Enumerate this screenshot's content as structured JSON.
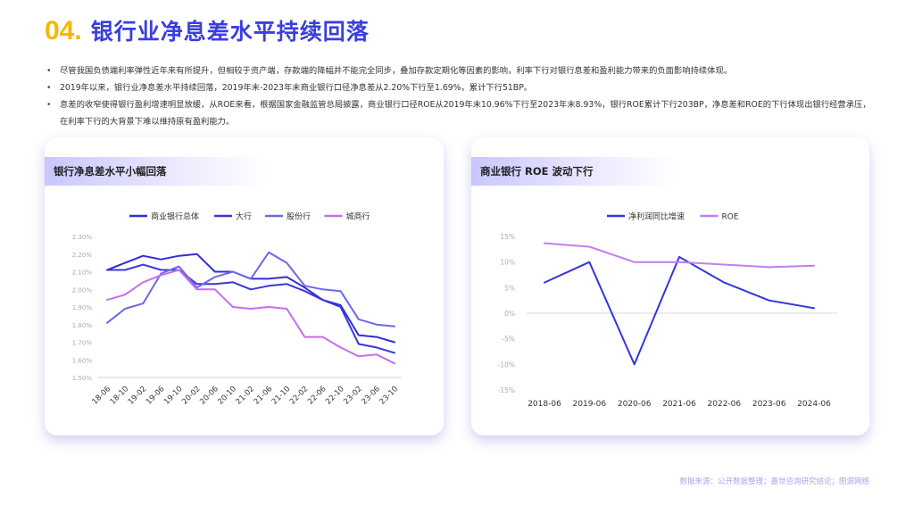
{
  "title": {
    "number": "04.",
    "text": "银行业净息差水平持续回落"
  },
  "bullets": [
    "尽管我国负债端利率弹性近年来有所提升，但相较于资产端，存款端的降幅并不能完全同步，叠加存款定期化等因素的影响，利率下行对银行息差和盈利能力带来的负面影响持续体现。",
    "2019年以来，银行业净息差水平持续回落，2019年末-2023年末商业银行口径净息差从2.20%下行至1.69%，累计下行51BP。",
    "息差的收窄使得银行盈利增速明显放缓，从ROE来看，根据国家金融监管总局披露，商业银行口径ROE从2019年末10.96%下行至2023年末8.93%，银行ROE累计下行203BP，净息差和ROE的下行体现出银行经营承压，在利率下行的大背景下难以维持原有盈利能力。"
  ],
  "footer": "数据来源：公开数据整理；嘉世咨询研究结论；图源网络",
  "chart_data": [
    {
      "type": "line",
      "title": "银行净息差水平小幅回落",
      "x": [
        "18-06",
        "18-10",
        "19-02",
        "19-06",
        "19-10",
        "20-02",
        "20-06",
        "20-10",
        "21-02",
        "21-06",
        "21-10",
        "22-02",
        "22-06",
        "22-10",
        "23-02",
        "23-06",
        "23-10"
      ],
      "ylim": [
        1.5,
        2.3
      ],
      "yticks": [
        "2.30%",
        "2.20%",
        "2.10%",
        "2.00%",
        "1.90%",
        "1.80%",
        "1.70%",
        "1.60%",
        "1.50%"
      ],
      "grid": false,
      "legend": "top",
      "series": [
        {
          "name": "商业银行总体",
          "color": "#2f2fd6",
          "values": [
            2.11,
            2.15,
            2.19,
            2.17,
            2.19,
            2.2,
            2.1,
            2.1,
            2.06,
            2.06,
            2.07,
            2.01,
            1.94,
            1.91,
            1.74,
            1.73,
            1.7
          ]
        },
        {
          "name": "大行",
          "color": "#3737e0",
          "values": [
            2.11,
            2.11,
            2.14,
            2.11,
            2.11,
            2.03,
            2.03,
            2.04,
            2.0,
            2.02,
            2.03,
            1.99,
            1.94,
            1.9,
            1.69,
            1.67,
            1.64
          ]
        },
        {
          "name": "股份行",
          "color": "#6a6ae6",
          "values": [
            1.81,
            1.89,
            1.92,
            2.09,
            2.13,
            2.01,
            2.07,
            2.1,
            2.06,
            2.21,
            2.15,
            2.02,
            2.0,
            1.99,
            1.83,
            1.8,
            1.79
          ]
        },
        {
          "name": "城商行",
          "color": "#c66ef0",
          "values": [
            1.94,
            1.97,
            2.04,
            2.08,
            2.11,
            2.0,
            2.0,
            1.9,
            1.89,
            1.9,
            1.89,
            1.73,
            1.73,
            1.67,
            1.62,
            1.63,
            1.58
          ]
        }
      ]
    },
    {
      "type": "line",
      "title": "商业银行 ROE 波动下行",
      "x": [
        "2018-06",
        "2019-06",
        "2020-06",
        "2021-06",
        "2022-06",
        "2023-06",
        "2024-06"
      ],
      "ylim": [
        -15,
        15
      ],
      "yticks": [
        "15%",
        "10%",
        "5%",
        "0%",
        "-5%",
        "-10%",
        "-15%"
      ],
      "grid": false,
      "legend": "top",
      "series": [
        {
          "name": "净利润同比增速",
          "color": "#3535e0",
          "values": [
            6,
            10,
            -10,
            11,
            6,
            2.5,
            1
          ]
        },
        {
          "name": "ROE",
          "color": "#c27ef2",
          "values": [
            13.7,
            13,
            10,
            10,
            9.5,
            9,
            9.3
          ]
        }
      ]
    }
  ]
}
